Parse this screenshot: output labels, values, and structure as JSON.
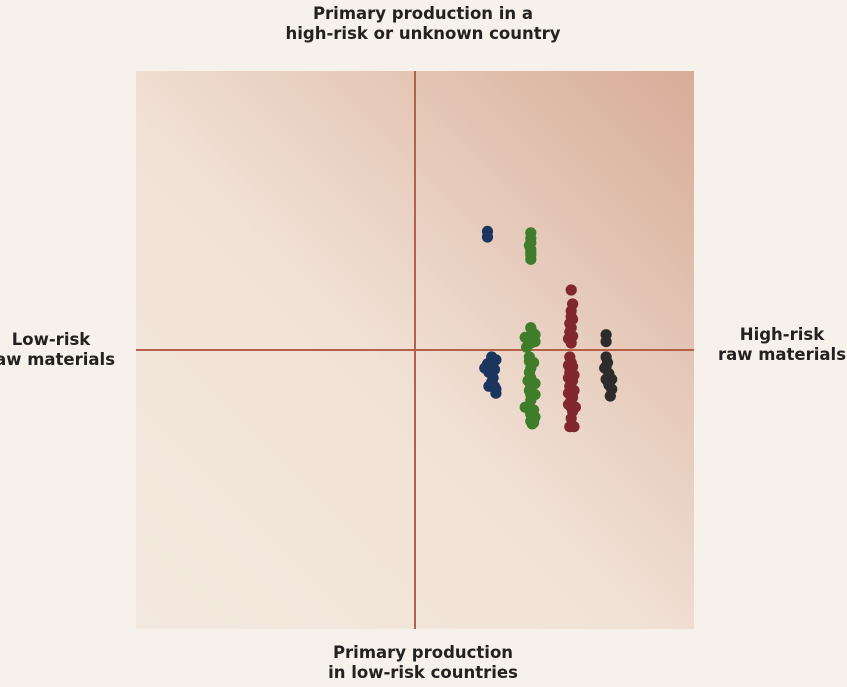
{
  "labels": {
    "top": [
      "Primary production in a",
      "high-risk or unknown country"
    ],
    "bottom": [
      "Primary production",
      "in low-risk countries"
    ],
    "left": [
      "Low-risk",
      "raw materials"
    ],
    "right": [
      "High-risk",
      "raw materials"
    ]
  },
  "colors": {
    "background": "#f6f1ea",
    "plot_light": "#f4e9df",
    "plot_dark": "#d8ac98",
    "axis_line": "#b5614a"
  },
  "chart_data": {
    "type": "scatter",
    "xlim": [
      -1,
      1
    ],
    "ylim": [
      -1,
      1
    ],
    "grid": false,
    "axes_through_origin": true,
    "series": [
      {
        "color": "#1b355e",
        "points": [
          [
            0.52,
            0.85
          ],
          [
            0.52,
            0.81
          ],
          [
            0.55,
            -0.05
          ],
          [
            0.58,
            -0.07
          ],
          [
            0.52,
            -0.1
          ],
          [
            0.55,
            -0.1
          ],
          [
            0.5,
            -0.13
          ],
          [
            0.57,
            -0.14
          ],
          [
            0.53,
            -0.16
          ],
          [
            0.56,
            -0.2
          ],
          [
            0.55,
            -0.23
          ],
          [
            0.53,
            -0.26
          ],
          [
            0.57,
            -0.26
          ],
          [
            0.58,
            -0.28
          ],
          [
            0.58,
            -0.31
          ]
        ]
      },
      {
        "color": "#3f7d2a",
        "points": [
          [
            0.83,
            0.84
          ],
          [
            0.83,
            0.8
          ],
          [
            0.83,
            0.77
          ],
          [
            0.82,
            0.75
          ],
          [
            0.83,
            0.72
          ],
          [
            0.83,
            0.7
          ],
          [
            0.83,
            0.68
          ],
          [
            0.83,
            0.65
          ],
          [
            0.83,
            0.16
          ],
          [
            0.84,
            0.13
          ],
          [
            0.86,
            0.11
          ],
          [
            0.79,
            0.09
          ],
          [
            0.82,
            0.09
          ],
          [
            0.86,
            0.06
          ],
          [
            0.83,
            0.05
          ],
          [
            0.8,
            0.02
          ],
          [
            0.82,
            -0.05
          ],
          [
            0.82,
            -0.08
          ],
          [
            0.85,
            -0.09
          ],
          [
            0.83,
            -0.13
          ],
          [
            0.82,
            -0.16
          ],
          [
            0.83,
            -0.2
          ],
          [
            0.84,
            -0.23
          ],
          [
            0.81,
            -0.22
          ],
          [
            0.86,
            -0.24
          ],
          [
            0.83,
            -0.26
          ],
          [
            0.82,
            -0.29
          ],
          [
            0.83,
            -0.32
          ],
          [
            0.86,
            -0.32
          ],
          [
            0.83,
            -0.36
          ],
          [
            0.79,
            -0.41
          ],
          [
            0.82,
            -0.43
          ],
          [
            0.85,
            -0.43
          ],
          [
            0.83,
            -0.46
          ],
          [
            0.86,
            -0.48
          ],
          [
            0.83,
            -0.51
          ],
          [
            0.84,
            -0.53
          ],
          [
            0.85,
            -0.52
          ]
        ]
      },
      {
        "color": "#80282e",
        "points": [
          [
            1.12,
            0.43
          ],
          [
            1.13,
            0.33
          ],
          [
            1.12,
            0.28
          ],
          [
            1.12,
            0.24
          ],
          [
            1.13,
            0.22
          ],
          [
            1.11,
            0.19
          ],
          [
            1.12,
            0.16
          ],
          [
            1.11,
            0.13
          ],
          [
            1.13,
            0.1
          ],
          [
            1.1,
            0.08
          ],
          [
            1.12,
            0.05
          ],
          [
            1.11,
            -0.05
          ],
          [
            1.12,
            -0.09
          ],
          [
            1.1,
            -0.11
          ],
          [
            1.13,
            -0.12
          ],
          [
            1.11,
            -0.16
          ],
          [
            1.14,
            -0.18
          ],
          [
            1.1,
            -0.2
          ],
          [
            1.13,
            -0.22
          ],
          [
            1.11,
            -0.26
          ],
          [
            1.14,
            -0.29
          ],
          [
            1.1,
            -0.31
          ],
          [
            1.13,
            -0.34
          ],
          [
            1.12,
            -0.36
          ],
          [
            1.1,
            -0.39
          ],
          [
            1.12,
            -0.41
          ],
          [
            1.15,
            -0.41
          ],
          [
            1.13,
            -0.44
          ],
          [
            1.12,
            -0.49
          ],
          [
            1.11,
            -0.55
          ],
          [
            1.14,
            -0.55
          ]
        ]
      },
      {
        "color": "#2e2b2b",
        "points": [
          [
            1.37,
            0.11
          ],
          [
            1.37,
            0.06
          ],
          [
            1.37,
            -0.05
          ],
          [
            1.38,
            -0.09
          ],
          [
            1.36,
            -0.13
          ],
          [
            1.37,
            -0.12
          ],
          [
            1.39,
            -0.17
          ],
          [
            1.37,
            -0.21
          ],
          [
            1.41,
            -0.21
          ],
          [
            1.39,
            -0.25
          ],
          [
            1.41,
            -0.28
          ],
          [
            1.4,
            -0.33
          ]
        ]
      }
    ]
  }
}
